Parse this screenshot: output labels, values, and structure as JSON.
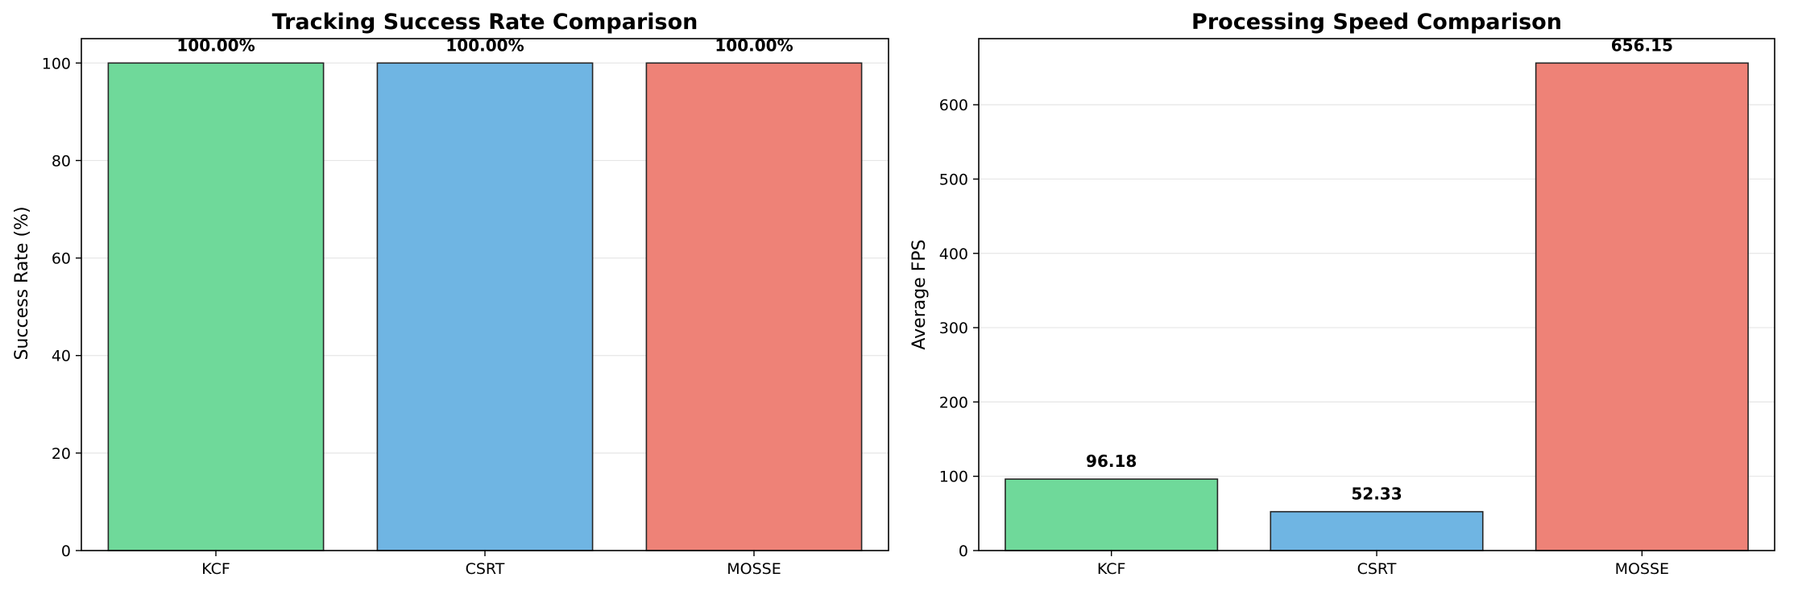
{
  "chart_data": [
    {
      "type": "bar",
      "title": "Tracking Success Rate Comparison",
      "xlabel": "",
      "ylabel": "Success Rate (%)",
      "categories": [
        "KCF",
        "CSRT",
        "MOSSE"
      ],
      "values": [
        100,
        100,
        100
      ],
      "value_labels": [
        "100.00%",
        "100.00%",
        "100.00%"
      ],
      "colors": [
        "#6fd99a",
        "#6fb5e3",
        "#ee8277"
      ],
      "ylim": [
        0,
        105
      ],
      "yticks": [
        0,
        20,
        40,
        60,
        80,
        100
      ],
      "grid": true
    },
    {
      "type": "bar",
      "title": "Processing Speed Comparison",
      "xlabel": "",
      "ylabel": "Average FPS",
      "categories": [
        "KCF",
        "CSRT",
        "MOSSE"
      ],
      "values": [
        96.18,
        52.33,
        656.15
      ],
      "value_labels": [
        "96.18",
        "52.33",
        "656.15"
      ],
      "colors": [
        "#6fd99a",
        "#6fb5e3",
        "#ee8277"
      ],
      "ylim": [
        0,
        689
      ],
      "yticks": [
        0,
        100,
        200,
        300,
        400,
        500,
        600
      ],
      "grid": true
    }
  ]
}
